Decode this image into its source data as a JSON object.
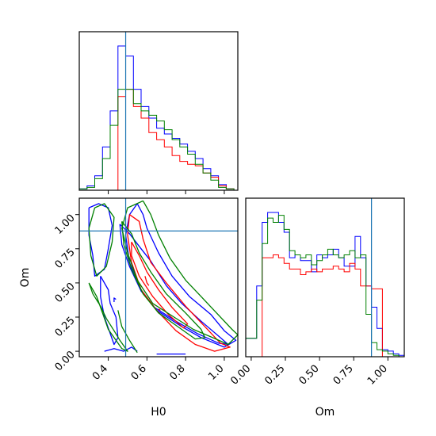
{
  "chart_data": {
    "type": "corner",
    "parameters": [
      "H0",
      "Om"
    ],
    "truths": {
      "H0": 0.49,
      "Om": 0.88
    },
    "truth_color": "#1f77b4",
    "series_colors": [
      "#0000ff",
      "#ff0000",
      "#008000"
    ],
    "ranges": {
      "H0": [
        0.25,
        1.07
      ],
      "Om": [
        -0.04,
        1.12
      ]
    },
    "ticks": {
      "H0": {
        "values": [
          0.4,
          0.6,
          0.8,
          1.0
        ],
        "labels": [
          "0.4",
          "0.6",
          "0.8",
          "1.0"
        ]
      },
      "Om": {
        "values": [
          0.0,
          0.25,
          0.5,
          0.75,
          1.0
        ],
        "labels": [
          "0.00",
          "0.25",
          "0.50",
          "0.75",
          "1.00"
        ]
      }
    },
    "xlabels": {
      "left": "H0",
      "right": "Om"
    },
    "ylabel": "Om",
    "hist_H0": {
      "edges": [
        0.25,
        0.29,
        0.33,
        0.37,
        0.41,
        0.45,
        0.49,
        0.53,
        0.57,
        0.61,
        0.65,
        0.69,
        0.73,
        0.77,
        0.81,
        0.85,
        0.89,
        0.93,
        0.97,
        1.01,
        1.05,
        1.07
      ],
      "series": [
        [
          1,
          3,
          10,
          30,
          55,
          100,
          93,
          70,
          58,
          50,
          43,
          39,
          36,
          32,
          27,
          22,
          15,
          10,
          4,
          1,
          0
        ],
        [
          0,
          0,
          0,
          0,
          0,
          65,
          70,
          58,
          50,
          40,
          35,
          30,
          24,
          20,
          18,
          17,
          12,
          9,
          3,
          1,
          0
        ],
        [
          1,
          2,
          8,
          22,
          45,
          70,
          70,
          60,
          55,
          52,
          48,
          42,
          35,
          30,
          25,
          18,
          12,
          7,
          2,
          1,
          0
        ]
      ]
    },
    "hist_Om": {
      "edges": [
        -0.04,
        0.0,
        0.04,
        0.08,
        0.12,
        0.16,
        0.2,
        0.24,
        0.28,
        0.32,
        0.36,
        0.4,
        0.44,
        0.48,
        0.52,
        0.56,
        0.6,
        0.64,
        0.68,
        0.72,
        0.76,
        0.8,
        0.84,
        0.88,
        0.92,
        0.96,
        1.0,
        1.04,
        1.08,
        1.12
      ],
      "series": [
        [
          13,
          13,
          50,
          95,
          102,
          102,
          95,
          88,
          70,
          72,
          68,
          68,
          60,
          72,
          70,
          72,
          76,
          70,
          64,
          64,
          85,
          70,
          50,
          35,
          20,
          5,
          4,
          2,
          1
        ],
        [
          0,
          0,
          0,
          70,
          70,
          72,
          70,
          66,
          62,
          62,
          58,
          60,
          62,
          60,
          62,
          62,
          64,
          62,
          60,
          66,
          62,
          50,
          50,
          48,
          48,
          0,
          0,
          0,
          0
        ],
        [
          13,
          13,
          40,
          80,
          98,
          95,
          100,
          90,
          75,
          72,
          70,
          72,
          65,
          68,
          72,
          76,
          72,
          70,
          72,
          75,
          70,
          72,
          30,
          10,
          5,
          4,
          2,
          1,
          0
        ]
      ]
    },
    "contours": [
      {
        "series": 0,
        "points": [
          [
            0.3,
            1.05
          ],
          [
            0.35,
            1.08
          ],
          [
            0.4,
            1.05
          ],
          [
            0.42,
            0.92
          ],
          [
            0.4,
            0.75
          ],
          [
            0.38,
            0.6
          ],
          [
            0.33,
            0.55
          ],
          [
            0.32,
            0.7
          ],
          [
            0.3,
            0.85
          ],
          [
            0.3,
            1.05
          ]
        ]
      },
      {
        "series": 0,
        "points": [
          [
            0.36,
            0.55
          ],
          [
            0.4,
            0.45
          ],
          [
            0.41,
            0.35
          ],
          [
            0.44,
            0.25
          ],
          [
            0.45,
            0.1
          ],
          [
            0.43,
            0.05
          ],
          [
            0.38,
            0.25
          ],
          [
            0.36,
            0.4
          ],
          [
            0.36,
            0.55
          ]
        ]
      },
      {
        "series": 0,
        "points": [
          [
            0.46,
            0.93
          ],
          [
            0.51,
            0.86
          ],
          [
            0.57,
            0.75
          ],
          [
            0.62,
            0.66
          ],
          [
            0.7,
            0.48
          ],
          [
            0.78,
            0.35
          ],
          [
            0.88,
            0.22
          ],
          [
            0.98,
            0.1
          ],
          [
            1.02,
            0.05
          ],
          [
            0.97,
            0.06
          ],
          [
            0.86,
            0.13
          ],
          [
            0.75,
            0.22
          ],
          [
            0.64,
            0.32
          ],
          [
            0.57,
            0.44
          ],
          [
            0.51,
            0.62
          ],
          [
            0.47,
            0.78
          ],
          [
            0.46,
            0.93
          ]
        ]
      },
      {
        "series": 0,
        "points": [
          [
            0.55,
            1.08
          ],
          [
            0.58,
            1.0
          ],
          [
            0.6,
            0.9
          ],
          [
            0.66,
            0.72
          ],
          [
            0.73,
            0.55
          ],
          [
            0.82,
            0.4
          ],
          [
            0.93,
            0.27
          ],
          [
            1.0,
            0.15
          ],
          [
            1.06,
            0.08
          ],
          [
            1.0,
            0.03
          ],
          [
            0.88,
            0.1
          ],
          [
            0.78,
            0.18
          ],
          [
            0.65,
            0.3
          ],
          [
            0.57,
            0.45
          ],
          [
            0.51,
            0.65
          ],
          [
            0.49,
            0.85
          ],
          [
            0.51,
            1.0
          ],
          [
            0.55,
            1.08
          ]
        ]
      },
      {
        "series": 0,
        "points": [
          [
            0.38,
            0.0
          ],
          [
            0.43,
            0.02
          ],
          [
            0.48,
            0.0
          ],
          [
            0.52,
            0.03
          ],
          [
            0.55,
            0.0
          ]
        ]
      },
      {
        "series": 0,
        "points": [
          [
            0.65,
            -0.02
          ],
          [
            0.7,
            -0.02
          ],
          [
            0.75,
            -0.02
          ],
          [
            0.8,
            -0.02
          ]
        ]
      },
      {
        "series": 0,
        "points": [
          [
            0.43,
            0.36
          ],
          [
            0.43,
            0.39
          ],
          [
            0.44,
            0.38
          ]
        ]
      },
      {
        "series": 1,
        "points": [
          [
            0.51,
            1.0
          ],
          [
            0.56,
            0.95
          ],
          [
            0.58,
            0.82
          ],
          [
            0.62,
            0.65
          ],
          [
            0.7,
            0.5
          ],
          [
            0.8,
            0.33
          ],
          [
            0.9,
            0.18
          ],
          [
            0.98,
            0.06
          ],
          [
            1.03,
            0.03
          ],
          [
            0.95,
            0.0
          ],
          [
            0.85,
            0.05
          ],
          [
            0.75,
            0.15
          ],
          [
            0.65,
            0.3
          ],
          [
            0.57,
            0.45
          ],
          [
            0.52,
            0.65
          ],
          [
            0.5,
            0.85
          ],
          [
            0.51,
            1.0
          ]
        ]
      },
      {
        "series": 1,
        "points": [
          [
            0.52,
            0.8
          ],
          [
            0.56,
            0.7
          ],
          [
            0.6,
            0.58
          ],
          [
            0.66,
            0.45
          ],
          [
            0.73,
            0.32
          ],
          [
            0.81,
            0.2
          ],
          [
            0.79,
            0.17
          ],
          [
            0.71,
            0.27
          ],
          [
            0.63,
            0.4
          ],
          [
            0.56,
            0.55
          ],
          [
            0.52,
            0.7
          ],
          [
            0.52,
            0.8
          ]
        ]
      },
      {
        "series": 1,
        "points": [
          [
            0.59,
            0.55
          ],
          [
            0.6,
            0.5
          ],
          [
            0.61,
            0.48
          ]
        ]
      },
      {
        "series": 1,
        "points": [
          [
            0.66,
            0.31
          ],
          [
            0.67,
            0.3
          ]
        ]
      },
      {
        "series": 2,
        "points": [
          [
            0.33,
            1.05
          ],
          [
            0.38,
            1.08
          ],
          [
            0.43,
            0.98
          ],
          [
            0.42,
            0.8
          ],
          [
            0.39,
            0.62
          ],
          [
            0.34,
            0.55
          ],
          [
            0.31,
            0.7
          ],
          [
            0.3,
            0.9
          ],
          [
            0.33,
            1.05
          ]
        ]
      },
      {
        "series": 2,
        "points": [
          [
            0.3,
            0.5
          ],
          [
            0.34,
            0.4
          ],
          [
            0.37,
            0.28
          ],
          [
            0.4,
            0.16
          ],
          [
            0.44,
            0.08
          ],
          [
            0.47,
            0.02
          ],
          [
            0.5,
            0.0
          ],
          [
            0.46,
            0.08
          ],
          [
            0.43,
            0.15
          ],
          [
            0.39,
            0.24
          ],
          [
            0.36,
            0.33
          ],
          [
            0.32,
            0.42
          ],
          [
            0.3,
            0.5
          ]
        ]
      },
      {
        "series": 2,
        "points": [
          [
            0.58,
            1.1
          ],
          [
            0.62,
            1.0
          ],
          [
            0.66,
            0.85
          ],
          [
            0.72,
            0.68
          ],
          [
            0.8,
            0.52
          ],
          [
            0.88,
            0.4
          ],
          [
            0.96,
            0.28
          ],
          [
            1.04,
            0.16
          ],
          [
            1.07,
            0.12
          ],
          [
            1.02,
            0.05
          ],
          [
            0.94,
            0.1
          ],
          [
            0.84,
            0.16
          ],
          [
            0.74,
            0.25
          ],
          [
            0.63,
            0.35
          ],
          [
            0.55,
            0.52
          ],
          [
            0.5,
            0.72
          ],
          [
            0.47,
            0.9
          ],
          [
            0.5,
            1.05
          ],
          [
            0.58,
            1.1
          ]
        ]
      },
      {
        "series": 2,
        "points": [
          [
            0.47,
            0.95
          ],
          [
            0.52,
            0.86
          ],
          [
            0.56,
            0.72
          ],
          [
            0.62,
            0.58
          ],
          [
            0.7,
            0.42
          ],
          [
            0.8,
            0.28
          ],
          [
            0.88,
            0.16
          ],
          [
            0.9,
            0.1
          ],
          [
            0.85,
            0.09
          ],
          [
            0.76,
            0.18
          ],
          [
            0.66,
            0.28
          ],
          [
            0.58,
            0.42
          ],
          [
            0.52,
            0.6
          ],
          [
            0.48,
            0.78
          ],
          [
            0.47,
            0.95
          ]
        ]
      },
      {
        "series": 2,
        "points": [
          [
            0.45,
            0.3
          ],
          [
            0.47,
            0.18
          ],
          [
            0.51,
            0.08
          ],
          [
            0.55,
            -0.01
          ]
        ]
      }
    ]
  }
}
